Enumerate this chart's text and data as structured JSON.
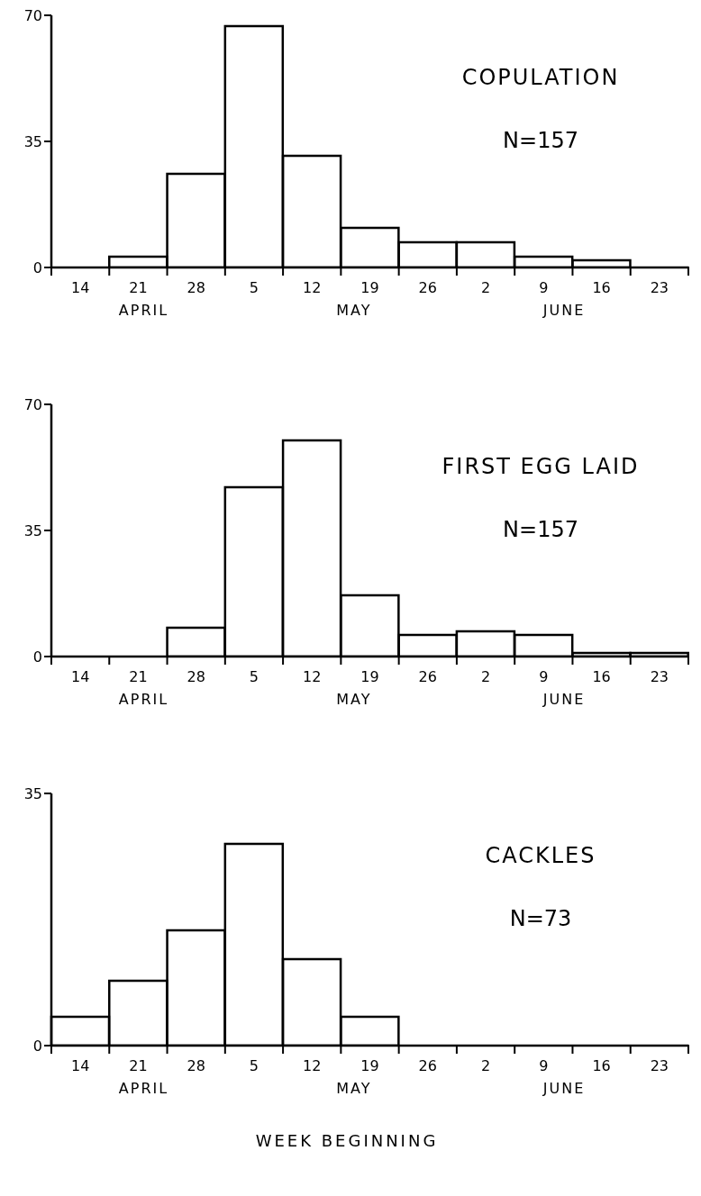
{
  "chart_data": [
    {
      "type": "bar",
      "title": "COPULATION",
      "subtitle": "N=157",
      "categories": [
        "14",
        "21",
        "28",
        "5",
        "12",
        "19",
        "26",
        "2",
        "9",
        "16",
        "23"
      ],
      "values": [
        0,
        3,
        26,
        67,
        31,
        11,
        7,
        7,
        3,
        2,
        0
      ],
      "color": "#000000",
      "ylim": [
        0,
        70
      ],
      "yticks": [
        0,
        35,
        70
      ],
      "annotations": [
        "APRIL",
        "MAY",
        "JUNE"
      ]
    },
    {
      "type": "bar",
      "title": "FIRST EGG LAID",
      "subtitle": "N=157",
      "categories": [
        "14",
        "21",
        "28",
        "5",
        "12",
        "19",
        "26",
        "2",
        "9",
        "16",
        "23"
      ],
      "values": [
        0,
        0,
        8,
        47,
        60,
        17,
        6,
        7,
        6,
        1,
        1
      ],
      "color": "#000000",
      "ylim": [
        0,
        70
      ],
      "yticks": [
        0,
        35,
        70
      ],
      "annotations": [
        "APRIL",
        "MAY",
        "JUNE"
      ]
    },
    {
      "type": "bar",
      "title": "CACKLES",
      "subtitle": "N=73",
      "xlabel": "WEEK BEGINNING",
      "categories": [
        "14",
        "21",
        "28",
        "5",
        "12",
        "19",
        "26",
        "2",
        "9",
        "16",
        "23"
      ],
      "values": [
        4,
        9,
        16,
        28,
        12,
        4,
        0,
        0,
        0,
        0,
        0
      ],
      "color": "#000000",
      "ylim": [
        0,
        35
      ],
      "yticks": [
        0,
        35
      ],
      "annotations": [
        "APRIL",
        "MAY",
        "JUNE"
      ]
    }
  ]
}
